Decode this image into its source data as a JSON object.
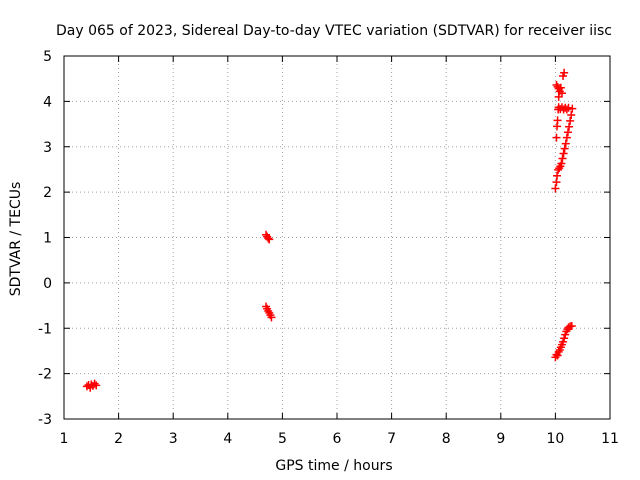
{
  "chart_data": {
    "type": "scatter",
    "title": "Day 065 of 2023, Sidereal Day-to-day VTEC variation (SDTVAR) for receiver iisc",
    "xlabel": "GPS time / hours",
    "ylabel": "SDTVAR / TECUs",
    "xlim": [
      1,
      11
    ],
    "ylim": [
      -3,
      5
    ],
    "xticks": [
      1,
      2,
      3,
      4,
      5,
      6,
      7,
      8,
      9,
      10,
      11
    ],
    "yticks": [
      -3,
      -2,
      -1,
      0,
      1,
      2,
      3,
      4,
      5
    ],
    "grid": true,
    "marker": "+",
    "colors": {
      "points": "#ff0000",
      "grid": "#a0a0a0",
      "axes": "#000000"
    },
    "series": [
      {
        "name": "SDTVAR",
        "points": [
          [
            1.42,
            -2.28
          ],
          [
            1.45,
            -2.25
          ],
          [
            1.48,
            -2.31
          ],
          [
            1.5,
            -2.24
          ],
          [
            1.53,
            -2.27
          ],
          [
            1.56,
            -2.22
          ],
          [
            1.59,
            -2.26
          ],
          [
            4.7,
            1.06
          ],
          [
            4.72,
            1.02
          ],
          [
            4.74,
            0.98
          ],
          [
            4.76,
            0.96
          ],
          [
            4.7,
            -0.52
          ],
          [
            4.72,
            -0.57
          ],
          [
            4.74,
            -0.62
          ],
          [
            4.76,
            -0.66
          ],
          [
            4.78,
            -0.71
          ],
          [
            4.8,
            -0.76
          ],
          [
            10.0,
            2.08
          ],
          [
            10.02,
            2.22
          ],
          [
            10.03,
            2.36
          ],
          [
            10.05,
            2.49
          ],
          [
            10.07,
            2.53
          ],
          [
            10.09,
            2.57
          ],
          [
            10.11,
            2.63
          ],
          [
            10.13,
            2.74
          ],
          [
            10.15,
            2.85
          ],
          [
            10.17,
            2.96
          ],
          [
            10.19,
            3.07
          ],
          [
            10.21,
            3.2
          ],
          [
            10.23,
            3.32
          ],
          [
            10.25,
            3.44
          ],
          [
            10.27,
            3.57
          ],
          [
            10.29,
            3.7
          ],
          [
            10.31,
            3.84
          ],
          [
            10.02,
            3.2
          ],
          [
            10.03,
            3.45
          ],
          [
            10.04,
            3.58
          ],
          [
            10.05,
            3.82
          ],
          [
            10.06,
            3.87
          ],
          [
            10.09,
            3.83
          ],
          [
            10.12,
            3.87
          ],
          [
            10.15,
            3.82
          ],
          [
            10.18,
            3.86
          ],
          [
            10.21,
            3.82
          ],
          [
            10.24,
            3.86
          ],
          [
            10.02,
            4.36
          ],
          [
            10.04,
            4.32
          ],
          [
            10.06,
            4.28
          ],
          [
            10.08,
            4.22
          ],
          [
            10.1,
            4.3
          ],
          [
            10.12,
            4.18
          ],
          [
            10.06,
            4.1
          ],
          [
            10.14,
            4.56
          ],
          [
            10.16,
            4.63
          ],
          [
            10.0,
            -1.64
          ],
          [
            10.02,
            -1.58
          ],
          [
            10.04,
            -1.6
          ],
          [
            10.06,
            -1.52
          ],
          [
            10.08,
            -1.48
          ],
          [
            10.1,
            -1.42
          ],
          [
            10.12,
            -1.36
          ],
          [
            10.14,
            -1.3
          ],
          [
            10.16,
            -1.22
          ],
          [
            10.18,
            -1.14
          ],
          [
            10.2,
            -1.07
          ],
          [
            10.22,
            -1.02
          ],
          [
            10.24,
            -0.98
          ],
          [
            10.27,
            -0.96
          ],
          [
            10.3,
            -0.95
          ]
        ]
      }
    ]
  }
}
